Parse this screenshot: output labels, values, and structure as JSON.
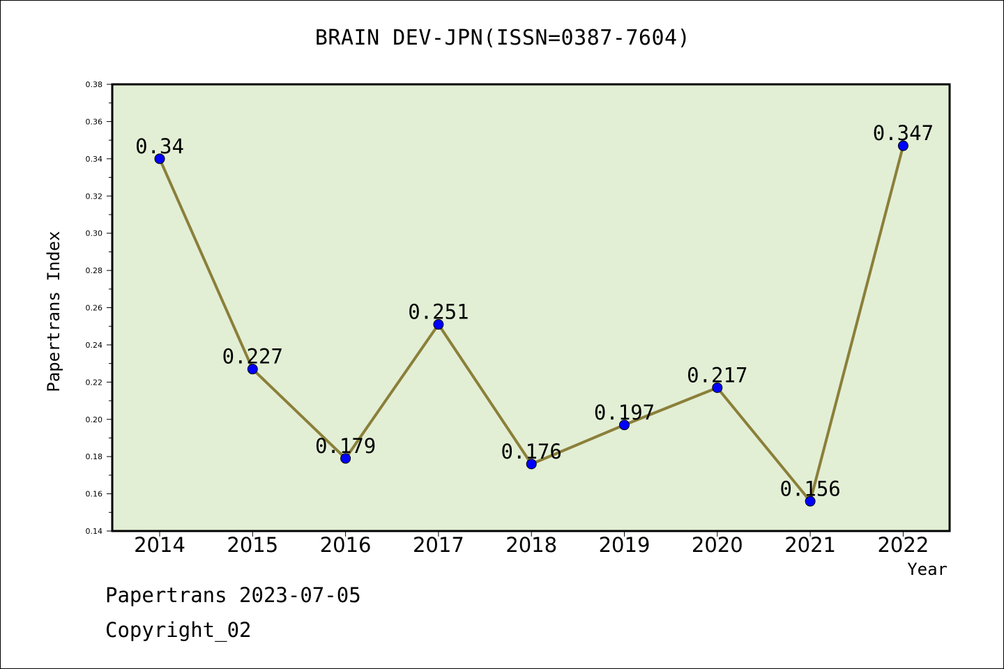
{
  "chart_data": {
    "type": "line",
    "title": "BRAIN DEV-JPN(ISSN=0387-7604)",
    "xlabel": "Year",
    "ylabel": "Papertrans Index",
    "categories": [
      "2014",
      "2015",
      "2016",
      "2017",
      "2018",
      "2019",
      "2020",
      "2021",
      "2022"
    ],
    "values": [
      0.34,
      0.227,
      0.179,
      0.251,
      0.176,
      0.197,
      0.217,
      0.156,
      0.347
    ],
    "value_labels": [
      "0.34",
      "0.227",
      "0.179",
      "0.251",
      "0.176",
      "0.197",
      "0.217",
      "0.156",
      "0.347"
    ],
    "ylim": [
      0.14,
      0.38
    ],
    "yticks": [
      "0.14",
      "0.16",
      "0.18",
      "0.20",
      "0.22",
      "0.24",
      "0.26",
      "0.28",
      "0.30",
      "0.32",
      "0.34",
      "0.36",
      "0.38"
    ],
    "grid": false,
    "colors": {
      "plot_background": "#e2efd5",
      "line": "#8b7f3a",
      "marker": "#0000ff"
    }
  },
  "footer": {
    "line1": "Papertrans 2023-07-05",
    "line2": "Copyright_02"
  }
}
